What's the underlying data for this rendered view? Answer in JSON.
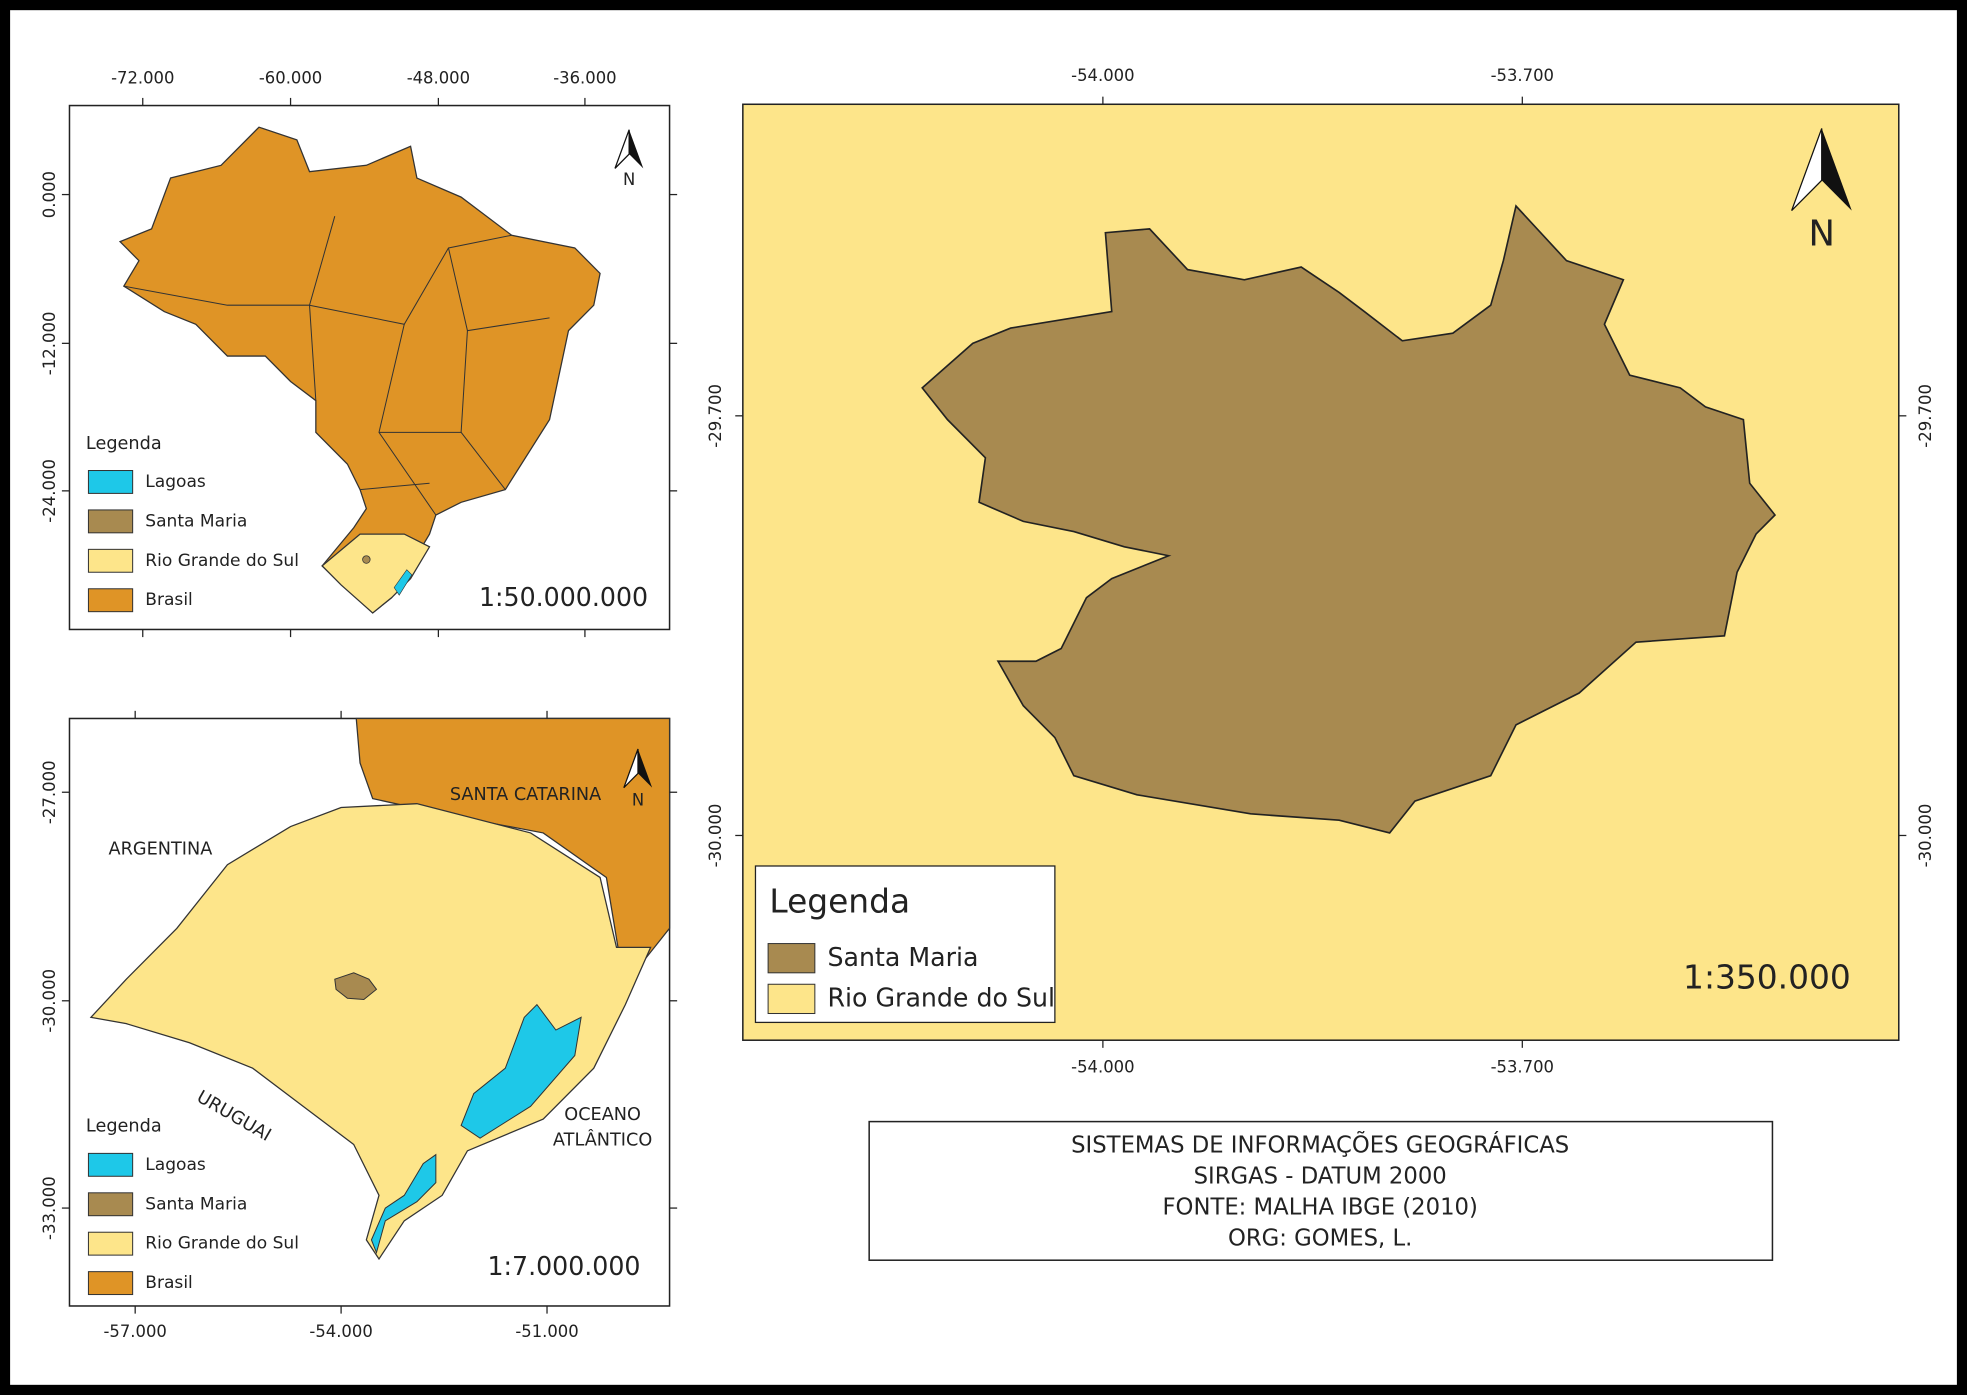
{
  "brazil_map": {
    "top_ticks": [
      "-72.000",
      "-60.000",
      "-48.000",
      "-36.000"
    ],
    "left_ticks": [
      "0.000",
      "-12.000",
      "-24.000"
    ],
    "north": "N",
    "legend_title": "Legenda",
    "legend": [
      "Lagoas",
      "Santa Maria",
      "Rio Grande do Sul",
      "Brasil"
    ],
    "scale": "1:50.000.000"
  },
  "rs_map": {
    "bottom_ticks": [
      "-57.000",
      "-54.000",
      "-51.000"
    ],
    "left_ticks": [
      "-27.000",
      "-30.000",
      "-33.000"
    ],
    "north": "N",
    "labels": [
      "ARGENTINA",
      "SANTA CATARINA",
      "URUGUAI",
      "OCEANO",
      "ATLÂNTICO"
    ],
    "legend_title": "Legenda",
    "legend": [
      "Lagoas",
      "Santa Maria",
      "Rio Grande do Sul",
      "Brasil"
    ],
    "scale": "1:7.000.000"
  },
  "santa_maria_map": {
    "top_ticks": [
      "-54.000",
      "-53.700"
    ],
    "bottom_ticks": [
      "-54.000",
      "-53.700"
    ],
    "left_ticks": [
      "-29.700",
      "-30.000"
    ],
    "right_ticks": [
      "-29.700",
      "-30.000"
    ],
    "north": "N",
    "legend_title": "Legenda",
    "legend": [
      "Santa Maria",
      "Rio Grande do Sul"
    ],
    "scale": "1:350.000"
  },
  "info": [
    "SISTEMAS DE INFORMAÇÕES GEOGRÁFICAS",
    "SIRGAS - DATUM 2000",
    "FONTE: MALHA IBGE (2010)",
    "ORG: GOMES, L."
  ]
}
